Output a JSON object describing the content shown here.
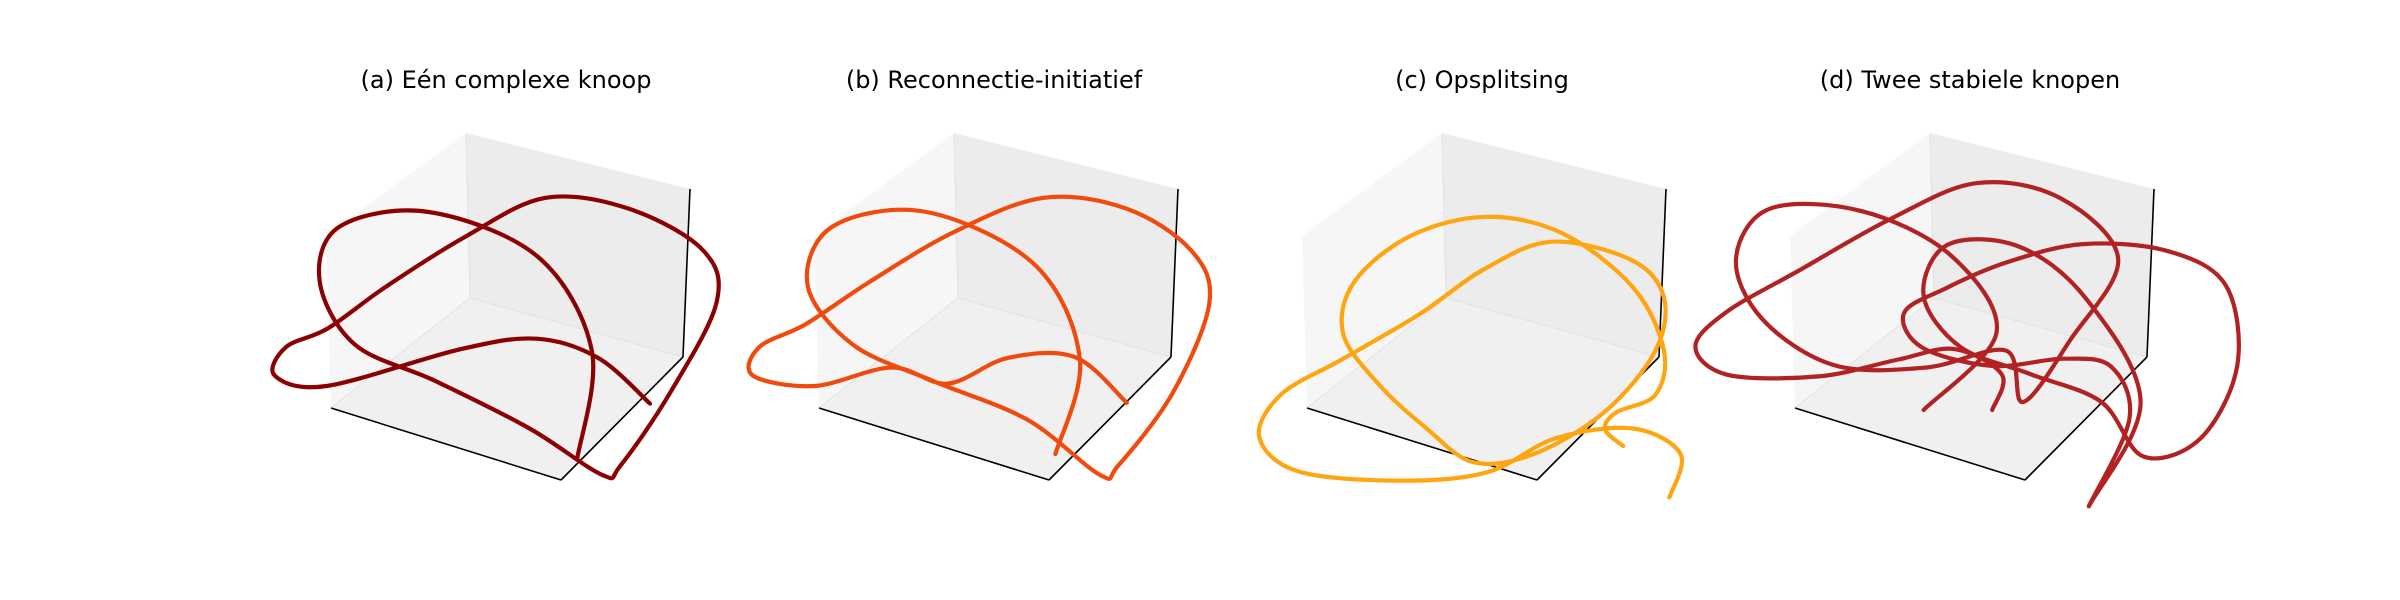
{
  "chart_data": [
    {
      "type": "line3d",
      "title": "(a) Eén complexe knoop",
      "color": "#8b0000",
      "grid": false,
      "axes_ticks": false,
      "series": [
        {
          "x": [
            0.14,
            0.16,
            0.04,
            -0.18,
            -0.35,
            -0.38,
            -0.3,
            -0.14,
            0.04,
            0.18,
            0.22,
            0.33,
            0.43,
            0.4,
            0.24,
            0.06,
            -0.1,
            -0.25,
            -0.36,
            -0.45,
            -0.48,
            -0.38,
            -0.1,
            0.06,
            0.18,
            0.28
          ],
          "y": [
            -0.35,
            -0.1,
            0.12,
            0.22,
            0.18,
            0.05,
            -0.1,
            -0.18,
            -0.28,
            -0.38,
            -0.36,
            -0.2,
            0.0,
            0.12,
            0.22,
            0.25,
            0.16,
            0.04,
            -0.06,
            -0.1,
            -0.16,
            -0.18,
            -0.1,
            -0.08,
            -0.12,
            -0.22
          ],
          "z": [
            -0.02,
            0.05,
            0.12,
            0.1,
            0.02,
            -0.06,
            -0.12,
            -0.08,
            0.0,
            0.06,
            0.04,
            -0.02,
            -0.06,
            -0.04,
            0.02,
            0.08,
            0.06,
            -0.02,
            -0.08,
            -0.05,
            0.0,
            0.04,
            0.0,
            -0.04,
            0.0,
            0.04
          ]
        }
      ]
    },
    {
      "type": "line3d",
      "title": "(b) Reconnectie-initiatief",
      "color": "#f04a0c",
      "grid": false,
      "axes_ticks": false,
      "series": [
        {
          "x": [
            0.12,
            0.16,
            0.06,
            -0.16,
            -0.34,
            -0.38,
            -0.28,
            -0.12,
            0.06,
            0.2,
            0.24,
            0.36,
            0.44,
            0.4,
            0.26,
            0.08,
            -0.1,
            -0.26,
            -0.38,
            -0.48,
            -0.5,
            -0.38,
            -0.22,
            -0.1,
            0.02,
            0.16,
            0.26
          ],
          "y": [
            -0.34,
            -0.12,
            0.1,
            0.22,
            0.18,
            0.04,
            -0.1,
            -0.18,
            -0.26,
            -0.38,
            -0.36,
            -0.2,
            0.0,
            0.12,
            0.22,
            0.25,
            0.17,
            0.05,
            -0.05,
            -0.1,
            -0.16,
            -0.18,
            -0.14,
            -0.18,
            -0.12,
            -0.12,
            -0.22
          ],
          "z": [
            -0.02,
            0.05,
            0.12,
            0.1,
            0.02,
            -0.06,
            -0.12,
            -0.08,
            0.0,
            0.06,
            0.04,
            -0.02,
            -0.06,
            -0.04,
            0.02,
            0.08,
            0.06,
            -0.02,
            -0.08,
            -0.05,
            0.0,
            0.04,
            0.02,
            -0.02,
            0.0,
            -0.02,
            0.02
          ]
        }
      ]
    },
    {
      "type": "line3d",
      "title": "(c) Opsplitsing",
      "color": "#ffa512",
      "grid": false,
      "axes_ticks": false,
      "series": [
        {
          "x": [
            0.28,
            0.24,
            0.26,
            0.34,
            0.36,
            0.3,
            0.16,
            0.0,
            -0.16,
            -0.28,
            -0.3,
            -0.22,
            -0.12,
            -0.02,
            0.1,
            0.24,
            0.34,
            0.36,
            0.3,
            0.14,
            0.0,
            -0.14,
            -0.3,
            -0.42,
            -0.46,
            -0.38,
            -0.18,
            0.0,
            0.14,
            0.3,
            0.4,
            0.38
          ],
          "y": [
            -0.32,
            -0.28,
            -0.24,
            -0.2,
            -0.1,
            0.04,
            0.16,
            0.2,
            0.16,
            0.06,
            -0.06,
            -0.18,
            -0.28,
            -0.36,
            -0.34,
            -0.24,
            -0.1,
            0.02,
            0.1,
            0.14,
            0.08,
            -0.02,
            -0.12,
            -0.2,
            -0.3,
            -0.38,
            -0.4,
            -0.38,
            -0.3,
            -0.28,
            -0.34,
            -0.44
          ],
          "z": [
            0.0,
            0.02,
            0.04,
            0.04,
            0.02,
            0.0,
            -0.02,
            0.0,
            0.04,
            0.08,
            0.06,
            0.02,
            -0.02,
            -0.04,
            -0.02,
            0.02,
            0.04,
            0.02,
            -0.02,
            -0.04,
            -0.02,
            0.02,
            0.04,
            0.02,
            -0.02,
            -0.04,
            -0.02,
            0.0,
            0.02,
            0.0,
            -0.02,
            -0.04
          ]
        }
      ]
    },
    {
      "type": "line3d",
      "title": "(d) Twee stabiele knopen",
      "color": "#b22222",
      "grid": false,
      "axes_ticks": false,
      "series": [
        {
          "x": [
            -0.1,
            0.04,
            -0.06,
            -0.24,
            -0.42,
            -0.48,
            -0.42,
            -0.28,
            -0.1,
            0.06,
            0.1,
            0.2,
            0.3,
            0.18,
            0.0,
            -0.18,
            -0.36,
            -0.5,
            -0.56,
            -0.5,
            -0.32,
            -0.16,
            -0.04,
            0.06,
            0.04
          ],
          "y": [
            -0.24,
            -0.06,
            0.12,
            0.22,
            0.22,
            0.1,
            -0.04,
            -0.14,
            -0.14,
            -0.1,
            -0.22,
            -0.08,
            0.1,
            0.24,
            0.28,
            0.2,
            0.08,
            -0.02,
            -0.1,
            -0.16,
            -0.16,
            -0.12,
            -0.1,
            -0.16,
            -0.24
          ],
          "z": [
            -0.02,
            0.04,
            0.1,
            0.08,
            0.02,
            -0.04,
            -0.08,
            -0.04,
            0.02,
            0.04,
            0.0,
            -0.02,
            -0.04,
            -0.02,
            0.04,
            0.06,
            0.02,
            -0.04,
            -0.06,
            -0.02,
            0.02,
            0.04,
            0.0,
            -0.02,
            -0.02
          ]
        },
        {
          "x": [
            0.24,
            0.34,
            0.22,
            0.08,
            -0.06,
            -0.1,
            -0.02,
            0.12,
            0.26,
            0.34,
            0.46,
            0.54,
            0.52,
            0.4,
            0.22,
            0.06,
            -0.06,
            -0.14,
            -0.1,
            0.04,
            0.18,
            0.28,
            0.32,
            0.24
          ],
          "y": [
            -0.46,
            -0.22,
            0.02,
            0.14,
            0.14,
            0.02,
            -0.1,
            -0.16,
            -0.22,
            -0.34,
            -0.3,
            -0.14,
            0.04,
            0.12,
            0.14,
            0.1,
            0.04,
            -0.02,
            -0.1,
            -0.14,
            -0.12,
            -0.14,
            -0.26,
            -0.46
          ],
          "z": [
            -0.04,
            0.0,
            0.06,
            0.08,
            0.04,
            -0.02,
            -0.06,
            -0.04,
            0.0,
            0.04,
            0.02,
            -0.02,
            -0.04,
            -0.02,
            0.02,
            0.04,
            0.02,
            -0.02,
            -0.04,
            -0.02,
            0.02,
            0.0,
            -0.02,
            -0.04
          ]
        }
      ]
    }
  ]
}
